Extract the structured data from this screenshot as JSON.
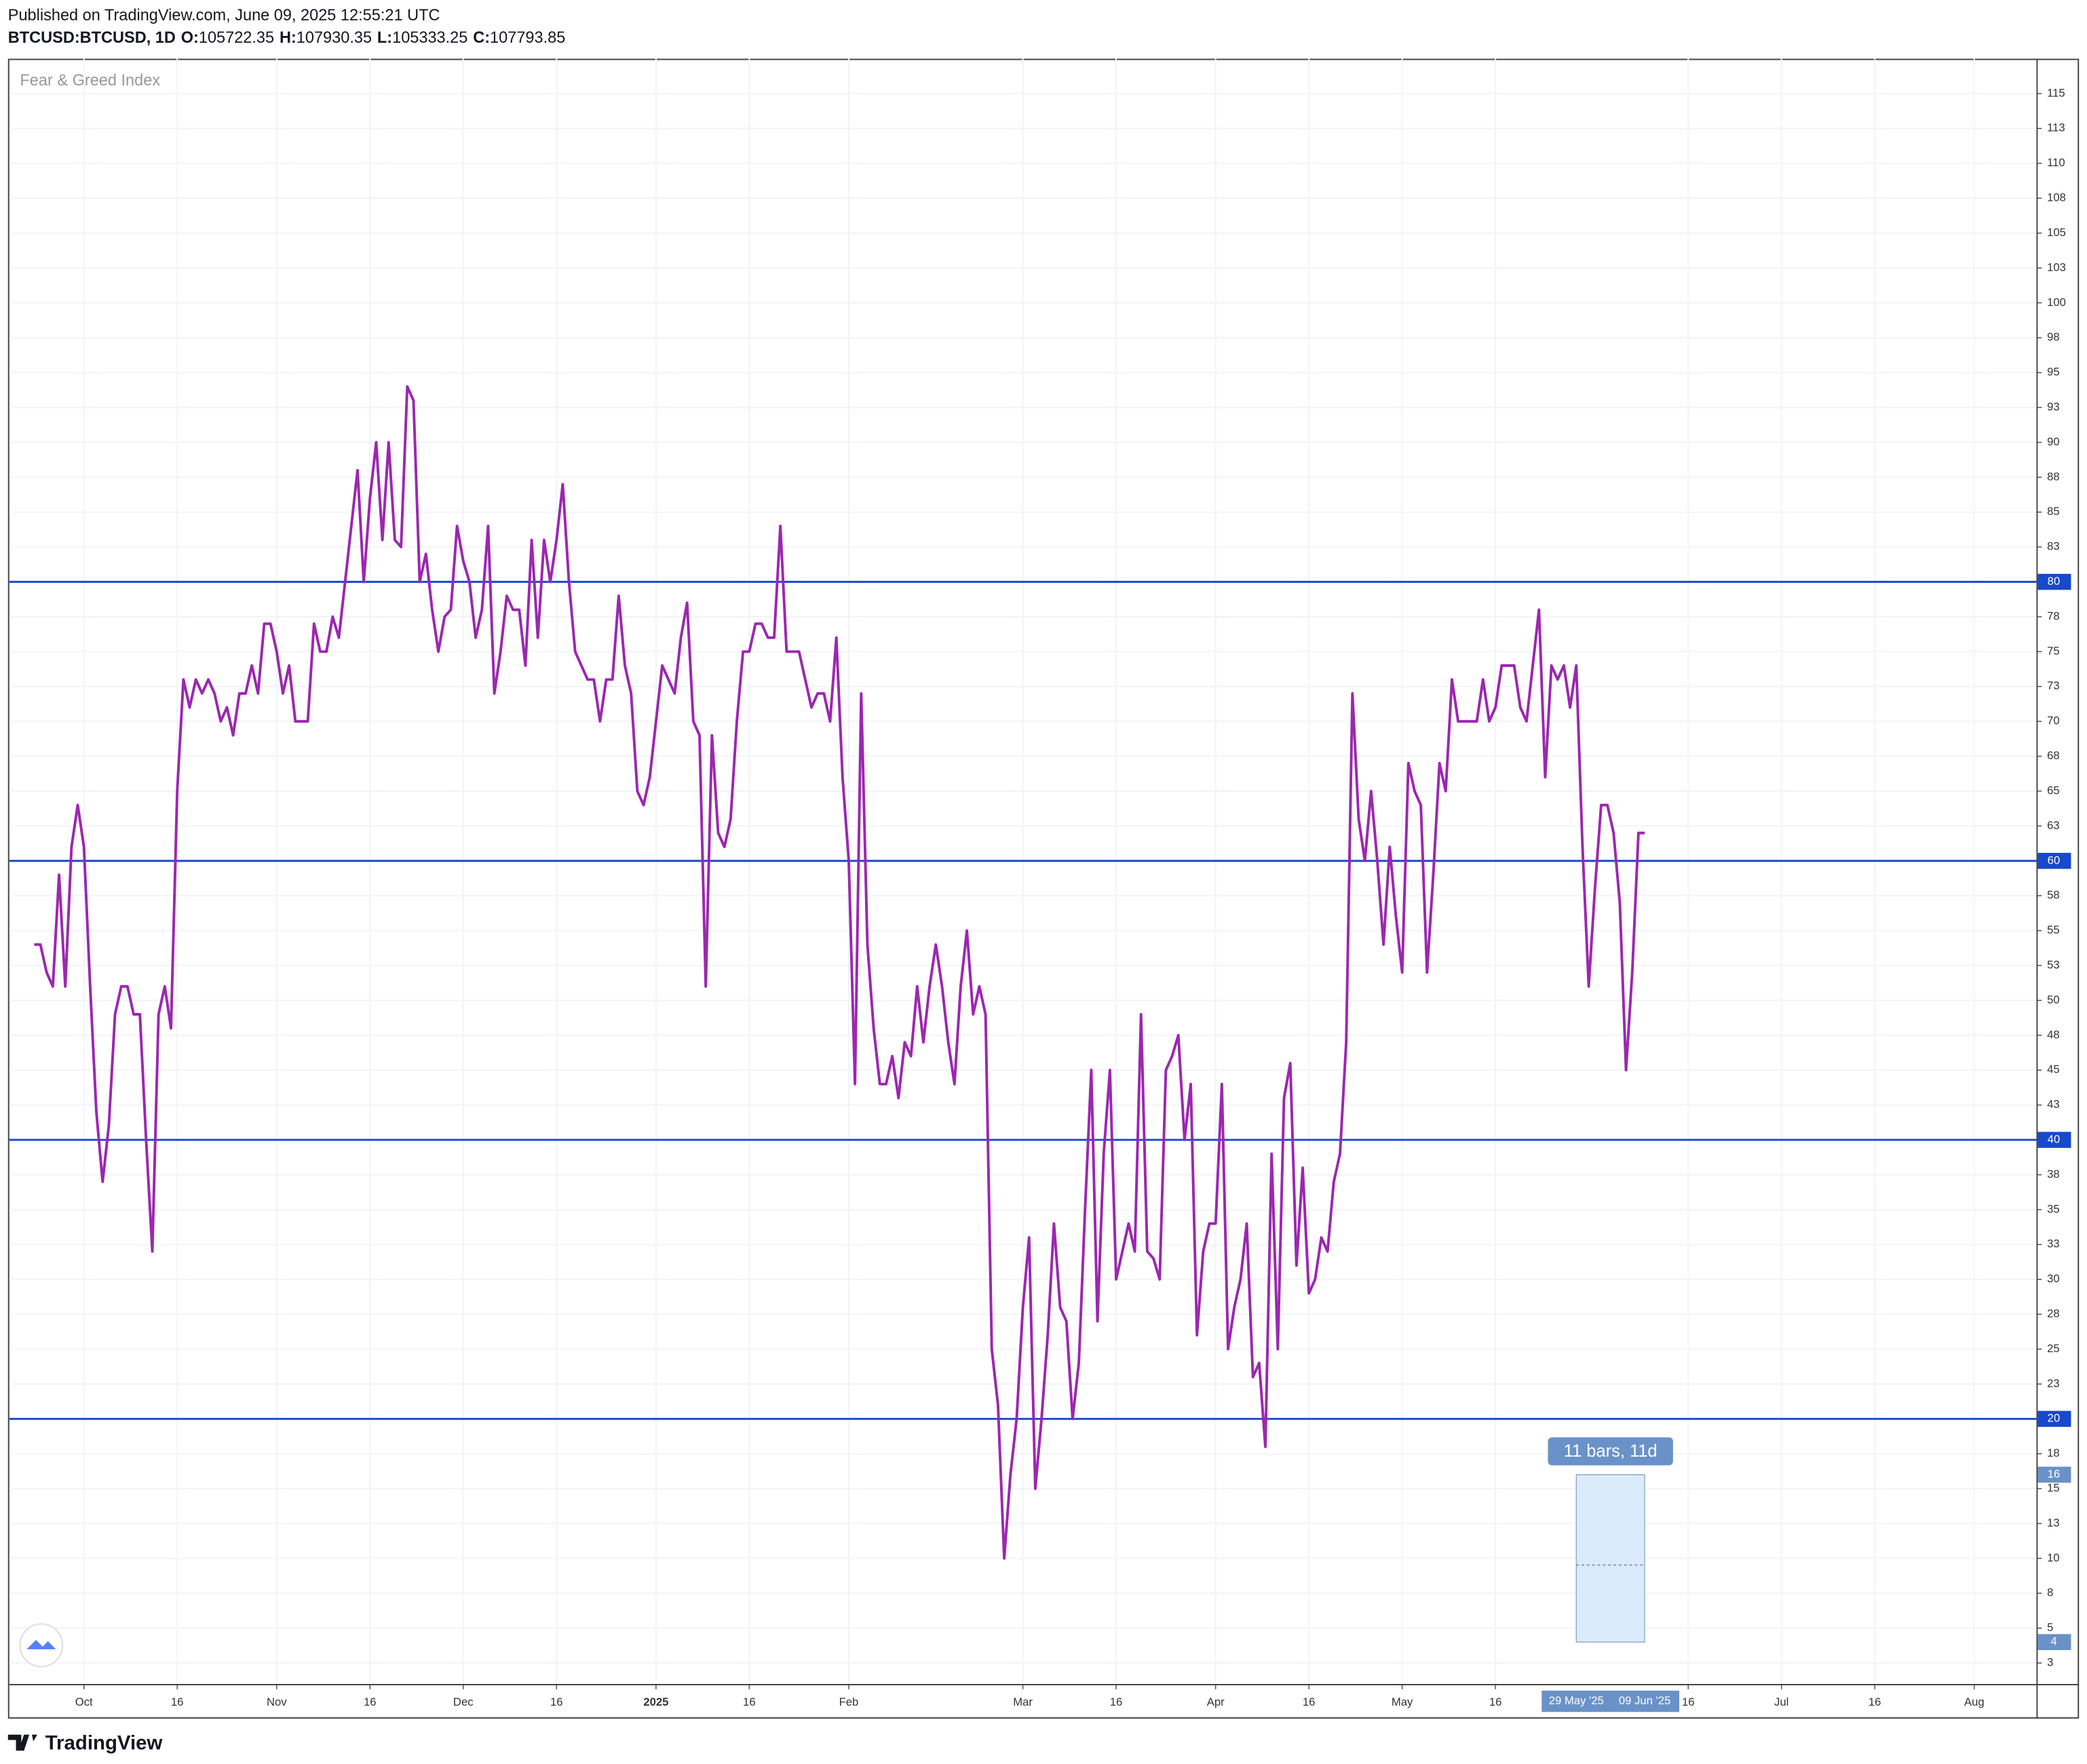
{
  "header": {
    "published": "Published on TradingView.com, June 09, 2025 12:55:21 UTC",
    "symbol": "BTCUSD:BTCUSD, 1D",
    "ohlc": [
      {
        "label": "O:",
        "value": 105722.35
      },
      {
        "label": "H:",
        "value": 107930.35
      },
      {
        "label": "L:",
        "value": 105333.25
      },
      {
        "label": "C:",
        "value": 107793.85
      }
    ]
  },
  "footer": {
    "brand": "TradingView"
  },
  "chart_data": {
    "type": "line",
    "series": [
      {
        "name": "Fear & Greed Index",
        "color": "#9c27b0",
        "values": [
          54,
          54,
          52,
          51,
          59,
          51,
          61,
          64,
          61,
          51,
          42,
          37,
          41,
          49,
          51,
          51,
          49,
          49,
          40,
          32,
          49,
          51,
          48,
          65,
          73,
          71,
          73,
          72,
          73,
          72,
          70,
          71,
          69,
          72,
          72,
          74,
          72,
          77,
          77,
          75,
          72,
          74,
          70,
          70,
          70,
          77,
          75,
          75,
          77.5,
          76,
          80,
          84,
          88,
          80,
          86,
          90,
          83,
          90,
          83,
          82.5,
          94,
          93,
          80,
          82,
          78,
          75,
          77.5,
          78,
          84,
          81.5,
          80,
          76,
          78,
          84,
          72,
          75,
          79,
          78,
          78,
          74,
          83,
          76,
          83,
          80,
          83,
          87,
          80,
          75,
          74,
          73,
          73,
          70,
          73,
          73,
          79,
          74,
          72,
          65,
          64,
          66,
          70,
          74,
          73,
          72,
          76,
          78.5,
          70,
          69,
          51,
          69,
          62,
          61,
          63,
          70,
          75,
          75,
          77,
          77,
          76,
          76,
          84,
          75,
          75,
          75,
          73,
          71,
          72,
          72,
          70,
          76,
          66,
          60,
          44,
          72,
          54,
          48,
          44,
          44,
          46,
          43,
          47,
          46,
          51,
          47,
          51,
          54,
          51,
          47,
          44,
          51,
          55,
          49,
          51,
          49,
          25,
          21,
          10,
          16,
          20,
          28,
          33,
          15,
          20,
          26,
          34,
          28,
          27,
          20,
          24,
          35,
          45,
          27,
          39,
          45,
          30,
          32,
          34,
          32,
          49,
          32,
          31.5,
          30,
          45,
          46,
          47.5,
          40,
          44,
          26,
          32,
          34,
          34,
          44,
          25,
          28,
          30,
          34,
          23,
          24,
          18,
          39,
          25,
          43,
          45.5,
          31,
          38,
          29,
          30,
          33,
          32,
          37,
          39,
          47,
          72,
          63,
          60,
          65,
          60,
          54,
          61,
          56,
          52,
          67,
          65,
          64,
          52,
          59,
          67,
          65,
          73,
          70,
          70,
          70,
          70,
          73,
          70,
          71,
          74,
          74,
          74,
          71,
          70,
          74,
          78,
          66,
          74,
          73,
          74,
          71,
          74,
          61,
          51,
          58,
          64,
          64,
          62,
          57,
          45,
          52,
          62,
          62
        ]
      }
    ],
    "x": [
      "2024-09-23",
      "2024-09-24",
      "2024-09-25",
      "2024-09-26",
      "2024-09-27",
      "2024-09-28",
      "2024-09-29",
      "2024-09-30",
      "2024-10-01",
      "2024-10-02",
      "2024-10-03",
      "2024-10-04",
      "2024-10-05",
      "2024-10-06",
      "2024-10-07",
      "2024-10-08",
      "2024-10-09",
      "2024-10-10",
      "2024-10-11",
      "2024-10-12",
      "2024-10-13",
      "2024-10-14",
      "2024-10-15",
      "2024-10-16",
      "2024-10-17",
      "2024-10-18",
      "2024-10-19",
      "2024-10-20",
      "2024-10-21",
      "2024-10-22",
      "2024-10-23",
      "2024-10-24",
      "2024-10-25",
      "2024-10-26",
      "2024-10-27",
      "2024-10-28",
      "2024-10-29",
      "2024-10-30",
      "2024-10-31",
      "2024-11-01",
      "2024-11-02",
      "2024-11-03",
      "2024-11-04",
      "2024-11-05",
      "2024-11-06",
      "2024-11-07",
      "2024-11-08",
      "2024-11-09",
      "2024-11-10",
      "2024-11-11",
      "2024-11-12",
      "2024-11-13",
      "2024-11-14",
      "2024-11-15",
      "2024-11-16",
      "2024-11-17",
      "2024-11-18",
      "2024-11-19",
      "2024-11-20",
      "2024-11-21",
      "2024-11-22",
      "2024-11-23",
      "2024-11-24",
      "2024-11-25",
      "2024-11-26",
      "2024-11-27",
      "2024-11-28",
      "2024-11-29",
      "2024-11-30",
      "2024-12-01",
      "2024-12-02",
      "2024-12-03",
      "2024-12-04",
      "2024-12-05",
      "2024-12-06",
      "2024-12-07",
      "2024-12-08",
      "2024-12-09",
      "2024-12-10",
      "2024-12-11",
      "2024-12-12",
      "2024-12-13",
      "2024-12-14",
      "2024-12-15",
      "2024-12-16",
      "2024-12-17",
      "2024-12-18",
      "2024-12-19",
      "2024-12-20",
      "2024-12-21",
      "2024-12-22",
      "2024-12-23",
      "2024-12-24",
      "2024-12-25",
      "2024-12-26",
      "2024-12-27",
      "2024-12-28",
      "2024-12-29",
      "2024-12-30",
      "2024-12-31",
      "2025-01-01",
      "2025-01-02",
      "2025-01-03",
      "2025-01-04",
      "2025-01-05",
      "2025-01-06",
      "2025-01-07",
      "2025-01-08",
      "2025-01-09",
      "2025-01-10",
      "2025-01-11",
      "2025-01-12",
      "2025-01-13",
      "2025-01-14",
      "2025-01-15",
      "2025-01-16",
      "2025-01-17",
      "2025-01-18",
      "2025-01-19",
      "2025-01-20",
      "2025-01-21",
      "2025-01-22",
      "2025-01-23",
      "2025-01-24",
      "2025-01-25",
      "2025-01-26",
      "2025-01-27",
      "2025-01-28",
      "2025-01-29",
      "2025-01-30",
      "2025-01-31",
      "2025-02-01",
      "2025-02-02",
      "2025-02-03",
      "2025-02-04",
      "2025-02-05",
      "2025-02-06",
      "2025-02-07",
      "2025-02-08",
      "2025-02-09",
      "2025-02-10",
      "2025-02-11",
      "2025-02-12",
      "2025-02-13",
      "2025-02-14",
      "2025-02-15",
      "2025-02-16",
      "2025-02-17",
      "2025-02-18",
      "2025-02-19",
      "2025-02-20",
      "2025-02-21",
      "2025-02-22",
      "2025-02-23",
      "2025-02-24",
      "2025-02-25",
      "2025-02-26",
      "2025-02-27",
      "2025-02-28",
      "2025-03-01",
      "2025-03-02",
      "2025-03-03",
      "2025-03-04",
      "2025-03-05",
      "2025-03-06",
      "2025-03-07",
      "2025-03-08",
      "2025-03-09",
      "2025-03-10",
      "2025-03-11",
      "2025-03-12",
      "2025-03-13",
      "2025-03-14",
      "2025-03-15",
      "2025-03-16",
      "2025-03-17",
      "2025-03-18",
      "2025-03-19",
      "2025-03-20",
      "2025-03-21",
      "2025-03-22",
      "2025-03-23",
      "2025-03-24",
      "2025-03-25",
      "2025-03-26",
      "2025-03-27",
      "2025-03-28",
      "2025-03-29",
      "2025-03-30",
      "2025-03-31",
      "2025-04-01",
      "2025-04-02",
      "2025-04-03",
      "2025-04-04",
      "2025-04-05",
      "2025-04-06",
      "2025-04-07",
      "2025-04-08",
      "2025-04-09",
      "2025-04-10",
      "2025-04-11",
      "2025-04-12",
      "2025-04-13",
      "2025-04-14",
      "2025-04-15",
      "2025-04-16",
      "2025-04-17",
      "2025-04-18",
      "2025-04-19",
      "2025-04-20",
      "2025-04-21",
      "2025-04-22",
      "2025-04-23",
      "2025-04-24",
      "2025-04-25",
      "2025-04-26",
      "2025-04-27",
      "2025-04-28",
      "2025-04-29",
      "2025-04-30",
      "2025-05-01",
      "2025-05-02",
      "2025-05-03",
      "2025-05-04",
      "2025-05-05",
      "2025-05-06",
      "2025-05-07",
      "2025-05-08",
      "2025-05-09",
      "2025-05-10",
      "2025-05-11",
      "2025-05-12",
      "2025-05-13",
      "2025-05-14",
      "2025-05-15",
      "2025-05-16",
      "2025-05-17",
      "2025-05-18",
      "2025-05-19",
      "2025-05-20",
      "2025-05-21",
      "2025-05-22",
      "2025-05-23",
      "2025-05-24",
      "2025-05-25",
      "2025-05-26",
      "2025-05-27",
      "2025-05-28",
      "2025-05-29",
      "2025-05-30",
      "2025-05-31",
      "2025-06-01",
      "2025-06-02",
      "2025-06-03",
      "2025-06-04",
      "2025-06-05",
      "2025-06-06",
      "2025-06-07",
      "2025-06-08",
      "2025-06-09"
    ],
    "xlim": [
      "2024-09-19",
      "2025-08-11"
    ],
    "xticks": [
      {
        "value": "2024-10-01",
        "label": "Oct"
      },
      {
        "value": "2024-10-16",
        "label": "16"
      },
      {
        "value": "2024-11-01",
        "label": "Nov"
      },
      {
        "value": "2024-11-16",
        "label": "16"
      },
      {
        "value": "2024-12-01",
        "label": "Dec"
      },
      {
        "value": "2024-12-16",
        "label": "16"
      },
      {
        "value": "2025-01-01",
        "label": "2025"
      },
      {
        "value": "2025-01-16",
        "label": "16"
      },
      {
        "value": "2025-02-01",
        "label": "Feb"
      },
      {
        "value": "2025-03-01",
        "label": "Mar"
      },
      {
        "value": "2025-03-16",
        "label": "16"
      },
      {
        "value": "2025-04-01",
        "label": "Apr"
      },
      {
        "value": "2025-04-16",
        "label": "16"
      },
      {
        "value": "2025-05-01",
        "label": "May"
      },
      {
        "value": "2025-05-16",
        "label": "16"
      },
      {
        "value": "2025-06-16",
        "label": "16"
      },
      {
        "value": "2025-07-01",
        "label": "Jul"
      },
      {
        "value": "2025-07-16",
        "label": "16"
      },
      {
        "value": "2025-08-01",
        "label": "Aug"
      }
    ],
    "ylim": [
      1,
      117.5
    ],
    "yticks": [
      115,
      {
        "value": 112.5,
        "label": "113"
      },
      110,
      {
        "value": 107.5,
        "label": "108"
      },
      105,
      {
        "value": 102.5,
        "label": "103"
      },
      100,
      {
        "value": 97.5,
        "label": "98"
      },
      95,
      {
        "value": 92.5,
        "label": "93"
      },
      90,
      {
        "value": 87.5,
        "label": "88"
      },
      85,
      {
        "value": 82.5,
        "label": "83"
      },
      80,
      {
        "value": 77.5,
        "label": "78"
      },
      75,
      {
        "value": 72.5,
        "label": "73"
      },
      70,
      {
        "value": 67.5,
        "label": "68"
      },
      65,
      {
        "value": 62.5,
        "label": "63"
      },
      60,
      {
        "value": 57.5,
        "label": "58"
      },
      55,
      {
        "value": 52.5,
        "label": "53"
      },
      50,
      {
        "value": 47.5,
        "label": "48"
      },
      45,
      {
        "value": 42.5,
        "label": "43"
      },
      40,
      {
        "value": 37.5,
        "label": "38"
      },
      35,
      {
        "value": 32.5,
        "label": "33"
      },
      30,
      {
        "value": 27.5,
        "label": "28"
      },
      25,
      {
        "value": 22.5,
        "label": "23"
      },
      20,
      {
        "value": 17.5,
        "label": "18"
      },
      15,
      {
        "value": 12.5,
        "label": "13"
      },
      10,
      {
        "value": 7.5,
        "label": "8"
      },
      5,
      {
        "value": 2.5,
        "label": "3"
      }
    ],
    "grid": true,
    "hlines": {
      "color": "#1848cc",
      "values": [
        80,
        60,
        40,
        20
      ]
    },
    "measure": {
      "label": "11 bars, 11d",
      "start": {
        "value": "2025-05-29",
        "label": "29 May '25"
      },
      "end": {
        "value": "2025-06-09",
        "label": "09 Jun '25"
      },
      "top": 16,
      "bottom": 4,
      "color": "#6a92c8"
    }
  }
}
